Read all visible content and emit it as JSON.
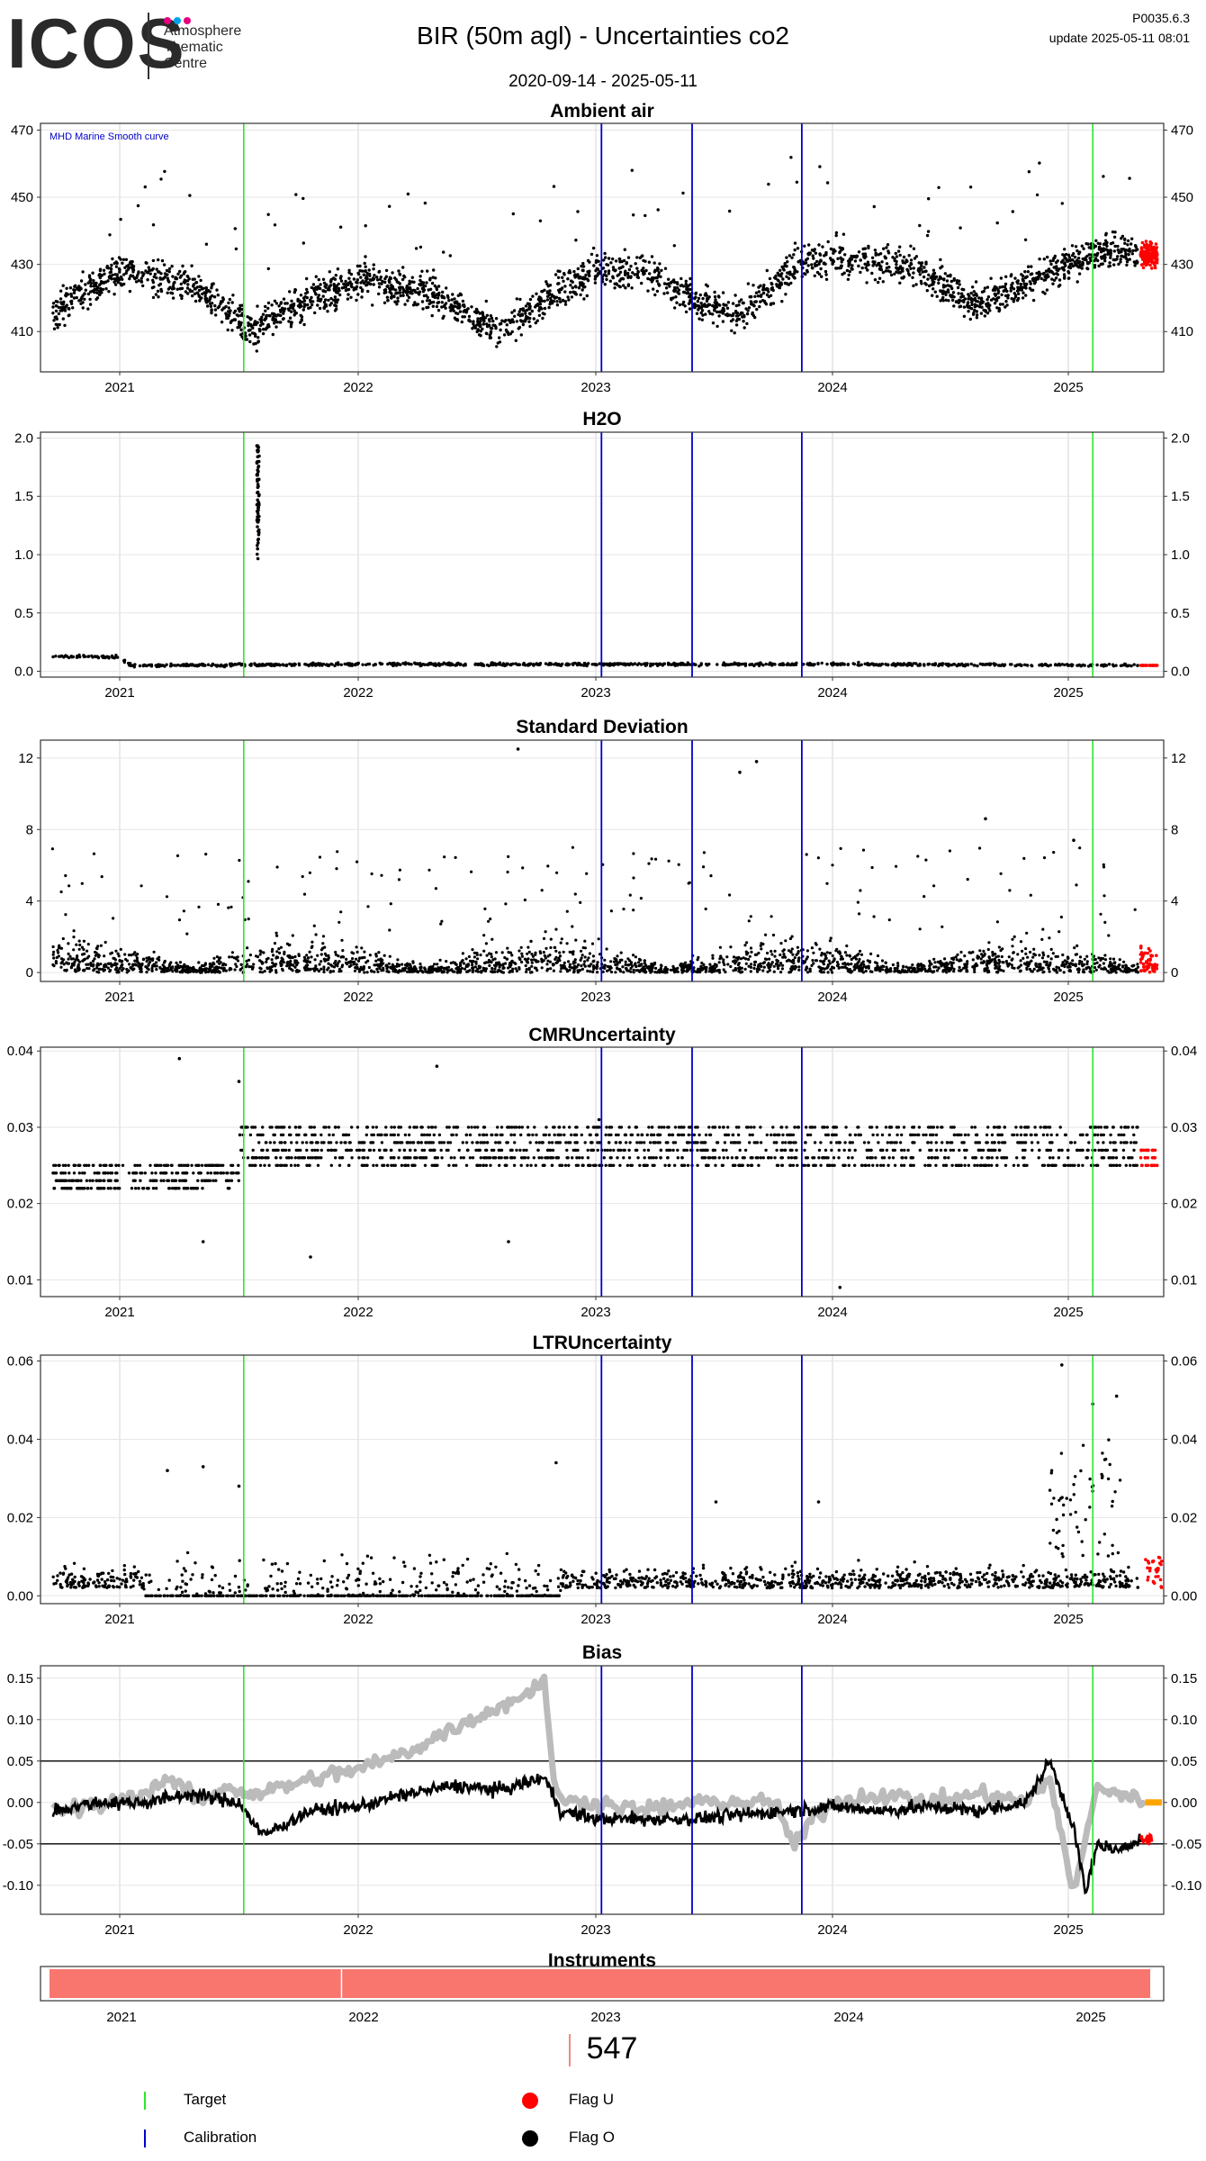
{
  "header": {
    "logo_text": "ICOS",
    "logo_subtitle": [
      "Atmosphere",
      "Thematic",
      "Centre"
    ],
    "logo_dot_colors": [
      "#e4007f",
      "#00a0e9",
      "#e6007e"
    ],
    "title": "BIR  (50m agl) - Uncertainties co2",
    "date_range": "2020-09-14 - 2025-05-11",
    "version": "P0035.6.3",
    "update": "update  2025-05-11 08:01"
  },
  "colors": {
    "target": "#2ee62e",
    "calibration": "#0000cc",
    "flag_u": "#ff0000",
    "flag_o": "#000000",
    "smooth_curve": "#bbbbbb",
    "bias_tail": "#ffa500",
    "instrument": "#f8766d"
  },
  "chart_data": [
    {
      "id": "ambient",
      "type": "scatter",
      "title": "Ambient air",
      "annotation": "MHD Marine Smooth curve",
      "xlim": [
        2020.7,
        2025.45
      ],
      "ylim": [
        398,
        472
      ],
      "yticks": [
        410,
        430,
        450,
        470
      ],
      "xticks": [
        "2021",
        "2022",
        "2023",
        "2024",
        "2025"
      ],
      "target_lines": [
        2021.52,
        2025.08
      ],
      "calibration_lines": [
        2023.02,
        2023.4,
        2023.86
      ],
      "series_profile": {
        "x": [
          2020.7,
          2021.0,
          2021.3,
          2021.55,
          2021.8,
          2022.0,
          2022.3,
          2022.6,
          2022.8,
          2023.0,
          2023.2,
          2023.4,
          2023.6,
          2023.85,
          2024.0,
          2024.3,
          2024.6,
          2024.9,
          2025.1,
          2025.3
        ],
        "y": [
          415,
          428,
          424,
          410,
          420,
          425,
          422,
          410,
          420,
          428,
          428,
          420,
          415,
          430,
          432,
          430,
          418,
          428,
          434,
          433
        ]
      },
      "flag_u_range": [
        2025.28,
        2025.35
      ]
    },
    {
      "id": "h2o",
      "type": "scatter",
      "title": "H2O",
      "xlim": [
        2020.7,
        2025.45
      ],
      "ylim": [
        -0.05,
        2.05
      ],
      "yticks": [
        0.0,
        0.5,
        1.0,
        1.5,
        2.0
      ],
      "yticklabels": [
        "0.0",
        "0.5",
        "1.0",
        "1.5",
        "2.0"
      ],
      "xticks": [
        "2021",
        "2022",
        "2023",
        "2024",
        "2025"
      ],
      "target_lines": [
        2021.52,
        2025.08
      ],
      "calibration_lines": [
        2023.02,
        2023.4,
        2023.86
      ],
      "series_profile": {
        "x": [
          2020.7,
          2021.0,
          2021.05,
          2022.0,
          2023.0,
          2024.0,
          2025.3
        ],
        "y": [
          0.13,
          0.12,
          0.05,
          0.06,
          0.06,
          0.06,
          0.05
        ]
      },
      "spike": {
        "x": 2021.58,
        "y_range": [
          0.95,
          1.95
        ]
      },
      "flag_u_range": [
        2025.28,
        2025.35
      ]
    },
    {
      "id": "stdev",
      "type": "scatter",
      "title": "Standard Deviation",
      "xlim": [
        2020.7,
        2025.45
      ],
      "ylim": [
        -0.5,
        13
      ],
      "yticks": [
        0,
        4,
        8,
        12
      ],
      "xticks": [
        "2021",
        "2022",
        "2023",
        "2024",
        "2025"
      ],
      "target_lines": [
        2021.52,
        2025.08
      ],
      "calibration_lines": [
        2023.02,
        2023.4,
        2023.86
      ],
      "outliers": [
        [
          2022.67,
          12.5
        ],
        [
          2023.67,
          11.8
        ],
        [
          2023.6,
          11.2
        ],
        [
          2024.63,
          8.6
        ],
        [
          2025.0,
          7.4
        ]
      ],
      "flag_u_range": [
        2025.28,
        2025.35
      ]
    },
    {
      "id": "cmr",
      "type": "scatter",
      "title": "CMRUncertainty",
      "xlim": [
        2020.7,
        2025.45
      ],
      "ylim": [
        0.0078,
        0.0405
      ],
      "yticks": [
        0.01,
        0.02,
        0.03,
        0.04
      ],
      "yticklabels": [
        "0.01",
        "0.02",
        "0.03",
        "0.04"
      ],
      "xticks": [
        "2021",
        "2022",
        "2023",
        "2024",
        "2025"
      ],
      "target_lines": [
        2021.52,
        2025.08
      ],
      "calibration_lines": [
        2023.02,
        2023.4,
        2023.86
      ],
      "levels": [
        0.022,
        0.023,
        0.024,
        0.025,
        0.026,
        0.027,
        0.028,
        0.029,
        0.03
      ],
      "outliers": [
        [
          2021.25,
          0.039
        ],
        [
          2021.5,
          0.036
        ],
        [
          2021.35,
          0.015
        ],
        [
          2021.8,
          0.013
        ],
        [
          2022.33,
          0.038
        ],
        [
          2022.63,
          0.015
        ],
        [
          2023.01,
          0.031
        ],
        [
          2024.02,
          0.009
        ]
      ],
      "flag_u_range": [
        2025.28,
        2025.35
      ]
    },
    {
      "id": "ltr",
      "type": "scatter",
      "title": "LTRUncertainty",
      "xlim": [
        2020.7,
        2025.45
      ],
      "ylim": [
        -0.002,
        0.0615
      ],
      "yticks": [
        0.0,
        0.02,
        0.04,
        0.06
      ],
      "yticklabels": [
        "0.00",
        "0.02",
        "0.04",
        "0.06"
      ],
      "xticks": [
        "2021",
        "2022",
        "2023",
        "2024",
        "2025"
      ],
      "target_lines": [
        2021.52,
        2025.08
      ],
      "calibration_lines": [
        2023.02,
        2023.4,
        2023.86
      ],
      "outliers": [
        [
          2021.2,
          0.032
        ],
        [
          2021.35,
          0.033
        ],
        [
          2021.5,
          0.028
        ],
        [
          2022.83,
          0.034
        ],
        [
          2024.95,
          0.059
        ],
        [
          2025.18,
          0.051
        ],
        [
          2025.08,
          0.049
        ],
        [
          2023.5,
          0.024
        ],
        [
          2023.93,
          0.024
        ]
      ],
      "flag_u_range": [
        2025.3,
        2025.37
      ]
    },
    {
      "id": "bias",
      "type": "line",
      "title": "Bias",
      "xlim": [
        2020.7,
        2025.45
      ],
      "ylim": [
        -0.135,
        0.165
      ],
      "yticks": [
        -0.1,
        -0.05,
        0.0,
        0.05,
        0.1,
        0.15
      ],
      "yticklabels": [
        "-0.10",
        "-0.05",
        "0.00",
        "0.05",
        "0.10",
        "0.15"
      ],
      "hlines": [
        0.05,
        -0.05
      ],
      "xticks": [
        "2021",
        "2022",
        "2023",
        "2024",
        "2025"
      ],
      "target_lines": [
        2021.52,
        2025.08
      ],
      "calibration_lines": [
        2023.02,
        2023.4,
        2023.86
      ],
      "smooth_series": {
        "x": [
          2020.72,
          2020.9,
          2021.1,
          2021.2,
          2021.35,
          2021.45,
          2021.55,
          2021.7,
          2021.9,
          2022.0,
          2022.2,
          2022.4,
          2022.55,
          2022.7,
          2022.78,
          2022.82,
          2022.88,
          2023.0,
          2023.2,
          2023.4,
          2023.6,
          2023.75,
          2023.83,
          2023.9,
          2024.0,
          2024.2,
          2024.4,
          2024.6,
          2024.8,
          2024.9,
          2025.0,
          2025.1,
          2025.2,
          2025.3
        ],
        "y": [
          -0.01,
          -0.005,
          0.01,
          0.03,
          0.0,
          0.02,
          0.01,
          0.02,
          0.035,
          0.04,
          0.06,
          0.09,
          0.11,
          0.13,
          0.15,
          0.02,
          0.0,
          0.0,
          -0.01,
          0.0,
          0.0,
          0.0,
          -0.055,
          -0.02,
          0.0,
          0.01,
          0.0,
          0.01,
          0.0,
          0.03,
          -0.11,
          0.02,
          0.01,
          0.0
        ]
      },
      "bias_series": {
        "x": [
          2020.72,
          2020.9,
          2021.1,
          2021.3,
          2021.5,
          2021.6,
          2021.8,
          2022.0,
          2022.2,
          2022.4,
          2022.6,
          2022.78,
          2022.85,
          2023.0,
          2023.2,
          2023.4,
          2023.6,
          2023.8,
          2024.0,
          2024.2,
          2024.4,
          2024.6,
          2024.8,
          2024.9,
          2025.0,
          2025.05,
          2025.1,
          2025.2,
          2025.28
        ],
        "y": [
          -0.01,
          0.0,
          0.0,
          0.01,
          0.0,
          -0.04,
          -0.01,
          -0.005,
          0.01,
          0.02,
          0.015,
          0.03,
          -0.01,
          -0.02,
          -0.02,
          -0.02,
          -0.015,
          -0.01,
          -0.005,
          -0.01,
          -0.005,
          -0.01,
          0.0,
          0.05,
          -0.03,
          -0.11,
          -0.05,
          -0.06,
          -0.04
        ]
      },
      "tail_range": [
        2025.3,
        2025.37
      ],
      "flag_u_range": [
        2025.28,
        2025.33
      ]
    }
  ],
  "instruments": {
    "title": "Instruments",
    "xticks": [
      "2021",
      "2022",
      "2023",
      "2024",
      "2025"
    ],
    "split_year": 2021.93
  },
  "count": "547",
  "legend": {
    "target": "Target",
    "calibration": "Calibration",
    "flag_u": "Flag U",
    "flag_o": "Flag O"
  }
}
